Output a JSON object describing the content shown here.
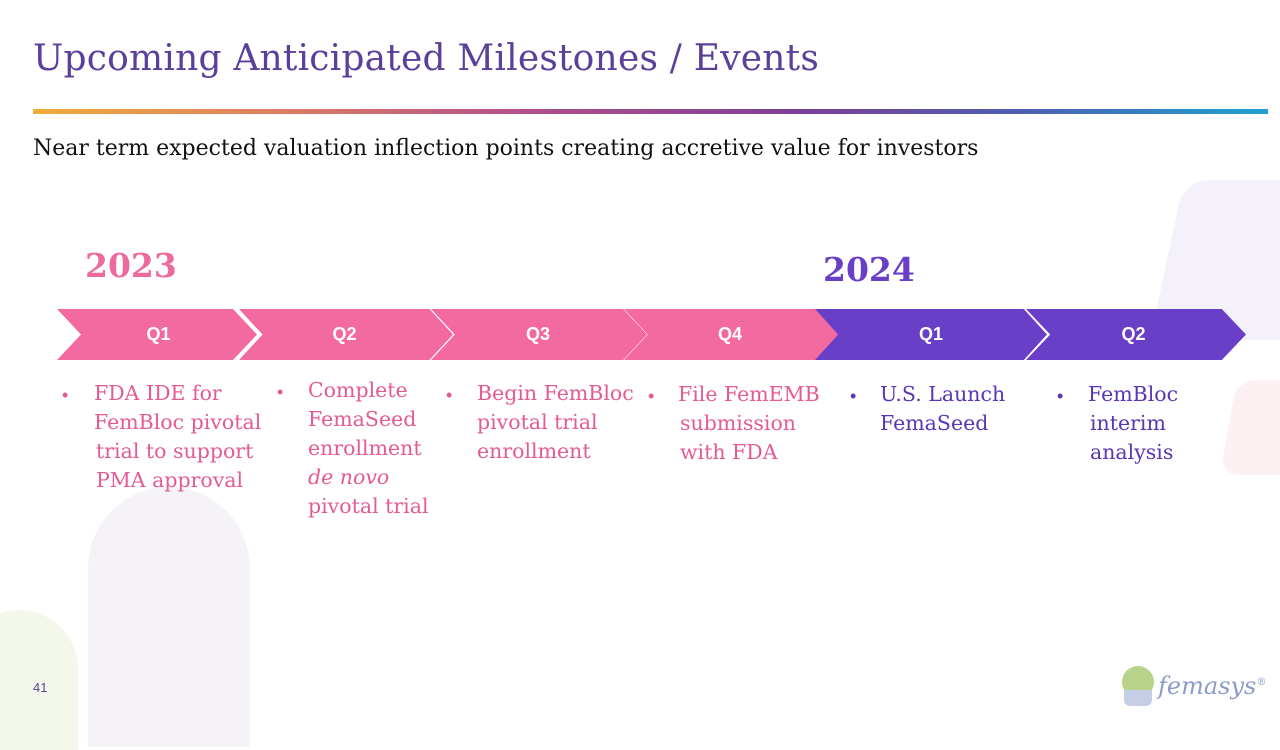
{
  "slide": {
    "title": "Upcoming Anticipated Milestones / Events",
    "subtitle": "Near term expected valuation inflection points creating accretive value for investors",
    "page_number": "41"
  },
  "timeline": {
    "year_2023": "2023",
    "year_2024": "2024",
    "quarters": [
      {
        "label": "Q1",
        "year": "2023"
      },
      {
        "label": "Q2",
        "year": "2023"
      },
      {
        "label": "Q3",
        "year": "2023"
      },
      {
        "label": "Q4",
        "year": "2023"
      },
      {
        "label": "Q1",
        "year": "2024"
      },
      {
        "label": "Q2",
        "year": "2024"
      }
    ],
    "colors": {
      "y2023": "#f26aa0",
      "y2024": "#6a3fc8"
    }
  },
  "milestones": [
    {
      "bullet": "•",
      "lines": [
        "FDA IDE for",
        "FemBloc pivotal",
        "trial to support",
        "PMA approval"
      ]
    },
    {
      "bullet": "•",
      "lines": [
        "Complete",
        "FemaSeed",
        "enrollment",
        "de novo",
        "pivotal trial"
      ]
    },
    {
      "bullet": "•",
      "lines": [
        "Begin FemBloc",
        "pivotal trial",
        "enrollment"
      ]
    },
    {
      "bullet": "•",
      "lines": [
        "File FemEMB",
        "submission",
        "with FDA"
      ]
    },
    {
      "bullet": "•",
      "lines": [
        "U.S. Launch",
        "FemaSeed"
      ]
    },
    {
      "bullet": "•",
      "lines": [
        "FemBloc",
        "interim",
        "analysis"
      ]
    }
  ],
  "logo": {
    "text": "femasys",
    "mark": "®",
    "icon": "femasys-logo-icon"
  }
}
